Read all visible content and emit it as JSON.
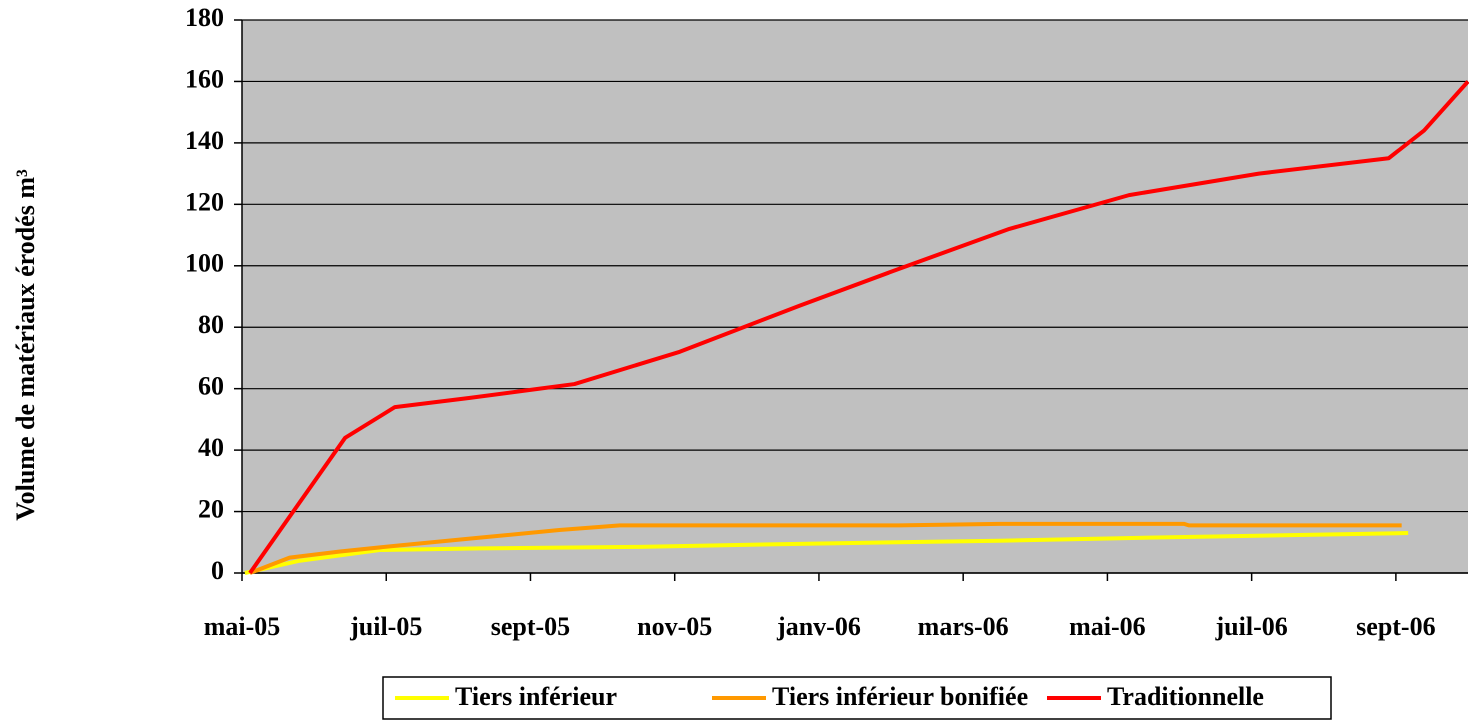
{
  "chart_data": {
    "type": "line",
    "ylabel": "Volume de matériaux érodés m³",
    "xlim": [
      0,
      17
    ],
    "xticks": [
      {
        "value": 0,
        "label": "mai-05"
      },
      {
        "value": 2,
        "label": "juil-05"
      },
      {
        "value": 4,
        "label": "sept-05"
      },
      {
        "value": 6,
        "label": "nov-05"
      },
      {
        "value": 8,
        "label": "janv-06"
      },
      {
        "value": 10,
        "label": "mars-06"
      },
      {
        "value": 12,
        "label": "mai-06"
      },
      {
        "value": 14,
        "label": "juil-06"
      },
      {
        "value": 16,
        "label": "sept-06"
      }
    ],
    "ylim": [
      0,
      180
    ],
    "yticks": [
      0,
      20,
      40,
      60,
      80,
      100,
      120,
      140,
      160,
      180
    ],
    "grid": true,
    "background": "#c0c0c0",
    "legend": "bottom",
    "series": [
      {
        "name": "Tiers inférieur",
        "color": "#ffff00",
        "x": [
          0.04,
          0.8,
          1.91,
          3.3,
          5.51,
          7.73,
          10.5,
          12.58,
          16.17
        ],
        "values": [
          0,
          4,
          7.5,
          8,
          8.5,
          9.5,
          10.5,
          11.5,
          13
        ]
      },
      {
        "name": "Tiers inférieur bonifiée",
        "color": "#ff9900",
        "x": [
          0.11,
          0.66,
          1.36,
          2.19,
          3.3,
          4.4,
          5.24,
          9.11,
          10.5,
          13.06,
          13.13,
          16.08
        ],
        "values": [
          0,
          5,
          7,
          9,
          11.5,
          14,
          15.5,
          15.5,
          16,
          16,
          15.5,
          15.5
        ]
      },
      {
        "name": "Traditionnelle",
        "color": "#ff0000",
        "x": [
          0.11,
          1.43,
          2.12,
          3.16,
          4.13,
          4.61,
          6.07,
          7.73,
          9.11,
          10.64,
          12.3,
          14.1,
          15.9,
          16.39,
          17
        ],
        "values": [
          0,
          44,
          54,
          57,
          60,
          61.5,
          72,
          87,
          99,
          112,
          123,
          130,
          135,
          144,
          160
        ]
      }
    ]
  }
}
